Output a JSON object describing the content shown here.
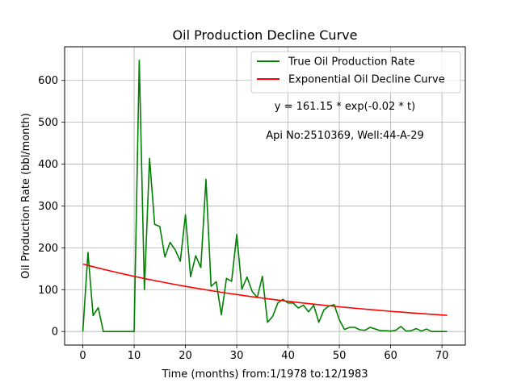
{
  "chart_data": {
    "type": "line",
    "title": "Oil Production Decline Curve",
    "xlabel": "Time (months) from:1/1978 to:12/1983",
    "ylabel": "Oil Production Rate (bbl/month)",
    "xlim": [
      -3.55,
      74.55
    ],
    "ylim": [
      -32.4,
      680.4
    ],
    "xticks": [
      0,
      10,
      20,
      30,
      40,
      50,
      60,
      70
    ],
    "yticks": [
      0,
      100,
      200,
      300,
      400,
      500,
      600
    ],
    "grid": true,
    "legend_position": "top-right",
    "colors": {
      "true_rate": "#008000",
      "decline_curve": "#ff0000"
    },
    "series": [
      {
        "name": "True Oil Production Rate",
        "x": [
          0,
          1,
          2,
          3,
          4,
          5,
          6,
          7,
          8,
          9,
          10,
          11,
          12,
          13,
          14,
          15,
          16,
          17,
          18,
          19,
          20,
          21,
          22,
          23,
          24,
          25,
          26,
          27,
          28,
          29,
          30,
          31,
          32,
          33,
          34,
          35,
          36,
          37,
          38,
          39,
          40,
          41,
          42,
          43,
          44,
          45,
          46,
          47,
          48,
          49,
          50,
          51,
          52,
          53,
          54,
          55,
          56,
          57,
          58,
          59,
          60,
          61,
          62,
          63,
          64,
          65,
          66,
          67,
          68,
          69,
          70,
          71
        ],
        "y": [
          0,
          189,
          38,
          57,
          0,
          0,
          0,
          0,
          0,
          0,
          0,
          648,
          100,
          414,
          256,
          251,
          178,
          213,
          195,
          168,
          279,
          131,
          181,
          153,
          364,
          108,
          119,
          40,
          127,
          120,
          232,
          101,
          130,
          96,
          81,
          132,
          22,
          36,
          68,
          77,
          68,
          68,
          56,
          63,
          47,
          63,
          22,
          52,
          61,
          64,
          28,
          5,
          10,
          10,
          4,
          3,
          10,
          6,
          2,
          2,
          1,
          3,
          12,
          1,
          2,
          7,
          1,
          6,
          0,
          0,
          0,
          0
        ]
      },
      {
        "name": "Exponential Oil Decline Curve",
        "x": [
          0,
          2,
          4,
          6,
          8,
          10,
          12,
          14,
          16,
          18,
          20,
          22,
          24,
          26,
          28,
          30,
          32,
          34,
          36,
          38,
          40,
          42,
          44,
          46,
          48,
          50,
          52,
          54,
          56,
          58,
          60,
          62,
          64,
          66,
          68,
          70,
          71
        ],
        "y": [
          161.15,
          154.8,
          148.7,
          142.9,
          137.3,
          131.9,
          126.7,
          121.7,
          116.9,
          112.3,
          107.9,
          103.7,
          99.6,
          95.7,
          91.9,
          88.3,
          84.8,
          81.5,
          78.3,
          75.2,
          72.2,
          69.4,
          66.7,
          64.0,
          61.5,
          59.1,
          56.8,
          54.5,
          52.4,
          50.3,
          48.3,
          46.4,
          44.6,
          42.9,
          41.2,
          39.5,
          38.8
        ]
      }
    ],
    "annotations": [
      "y = 161.15 * exp(-0.02 * t)",
      "Api No:2510369, Well:44-A-29"
    ]
  }
}
